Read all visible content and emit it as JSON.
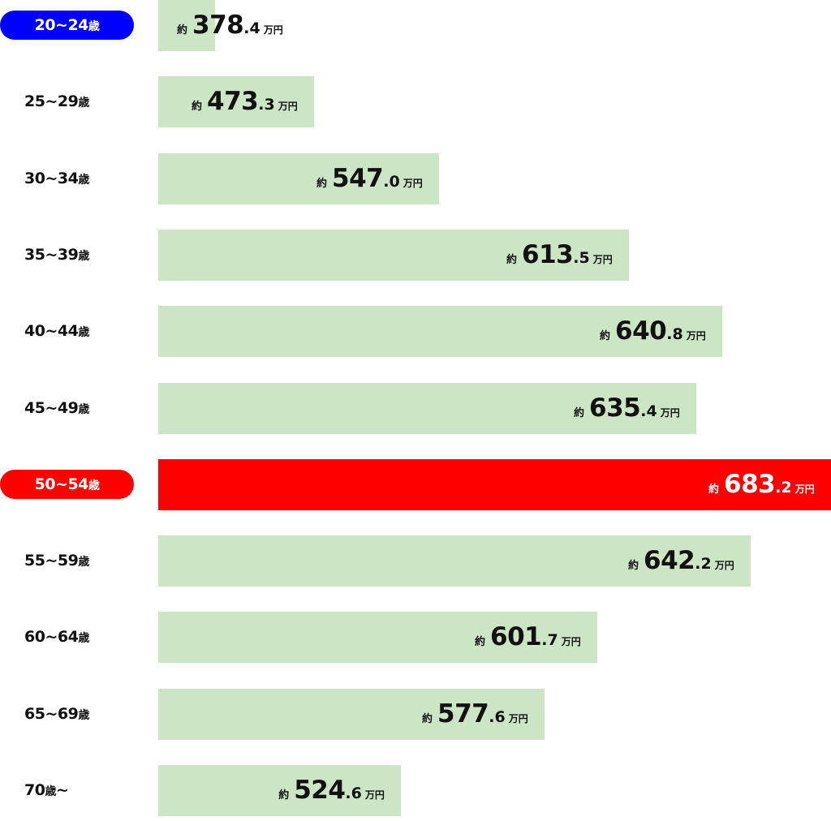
{
  "chart_data": {
    "type": "bar",
    "orientation": "horizontal",
    "categories": [
      "20~24歳",
      "25~29歳",
      "30~34歳",
      "35~39歳",
      "40~44歳",
      "45~49歳",
      "50~54歳",
      "55~59歳",
      "60~64歳",
      "65~69歳",
      "70歳~"
    ],
    "values": [
      378.4,
      473.3,
      547.0,
      613.5,
      640.8,
      635.4,
      683.2,
      642.2,
      601.7,
      577.6,
      524.6
    ],
    "value_labels": [
      "378.4",
      "473.3",
      "547.0",
      "613.5",
      "640.8",
      "635.4",
      "683.2",
      "642.2",
      "601.7",
      "577.6",
      "524.6"
    ],
    "value_prefix": "約",
    "value_unit": "万円",
    "highlight": {
      "0": "#0000ff",
      "6": "#ff0000"
    },
    "bar_color": "#cce5c4",
    "grid": false,
    "legend": "none"
  }
}
